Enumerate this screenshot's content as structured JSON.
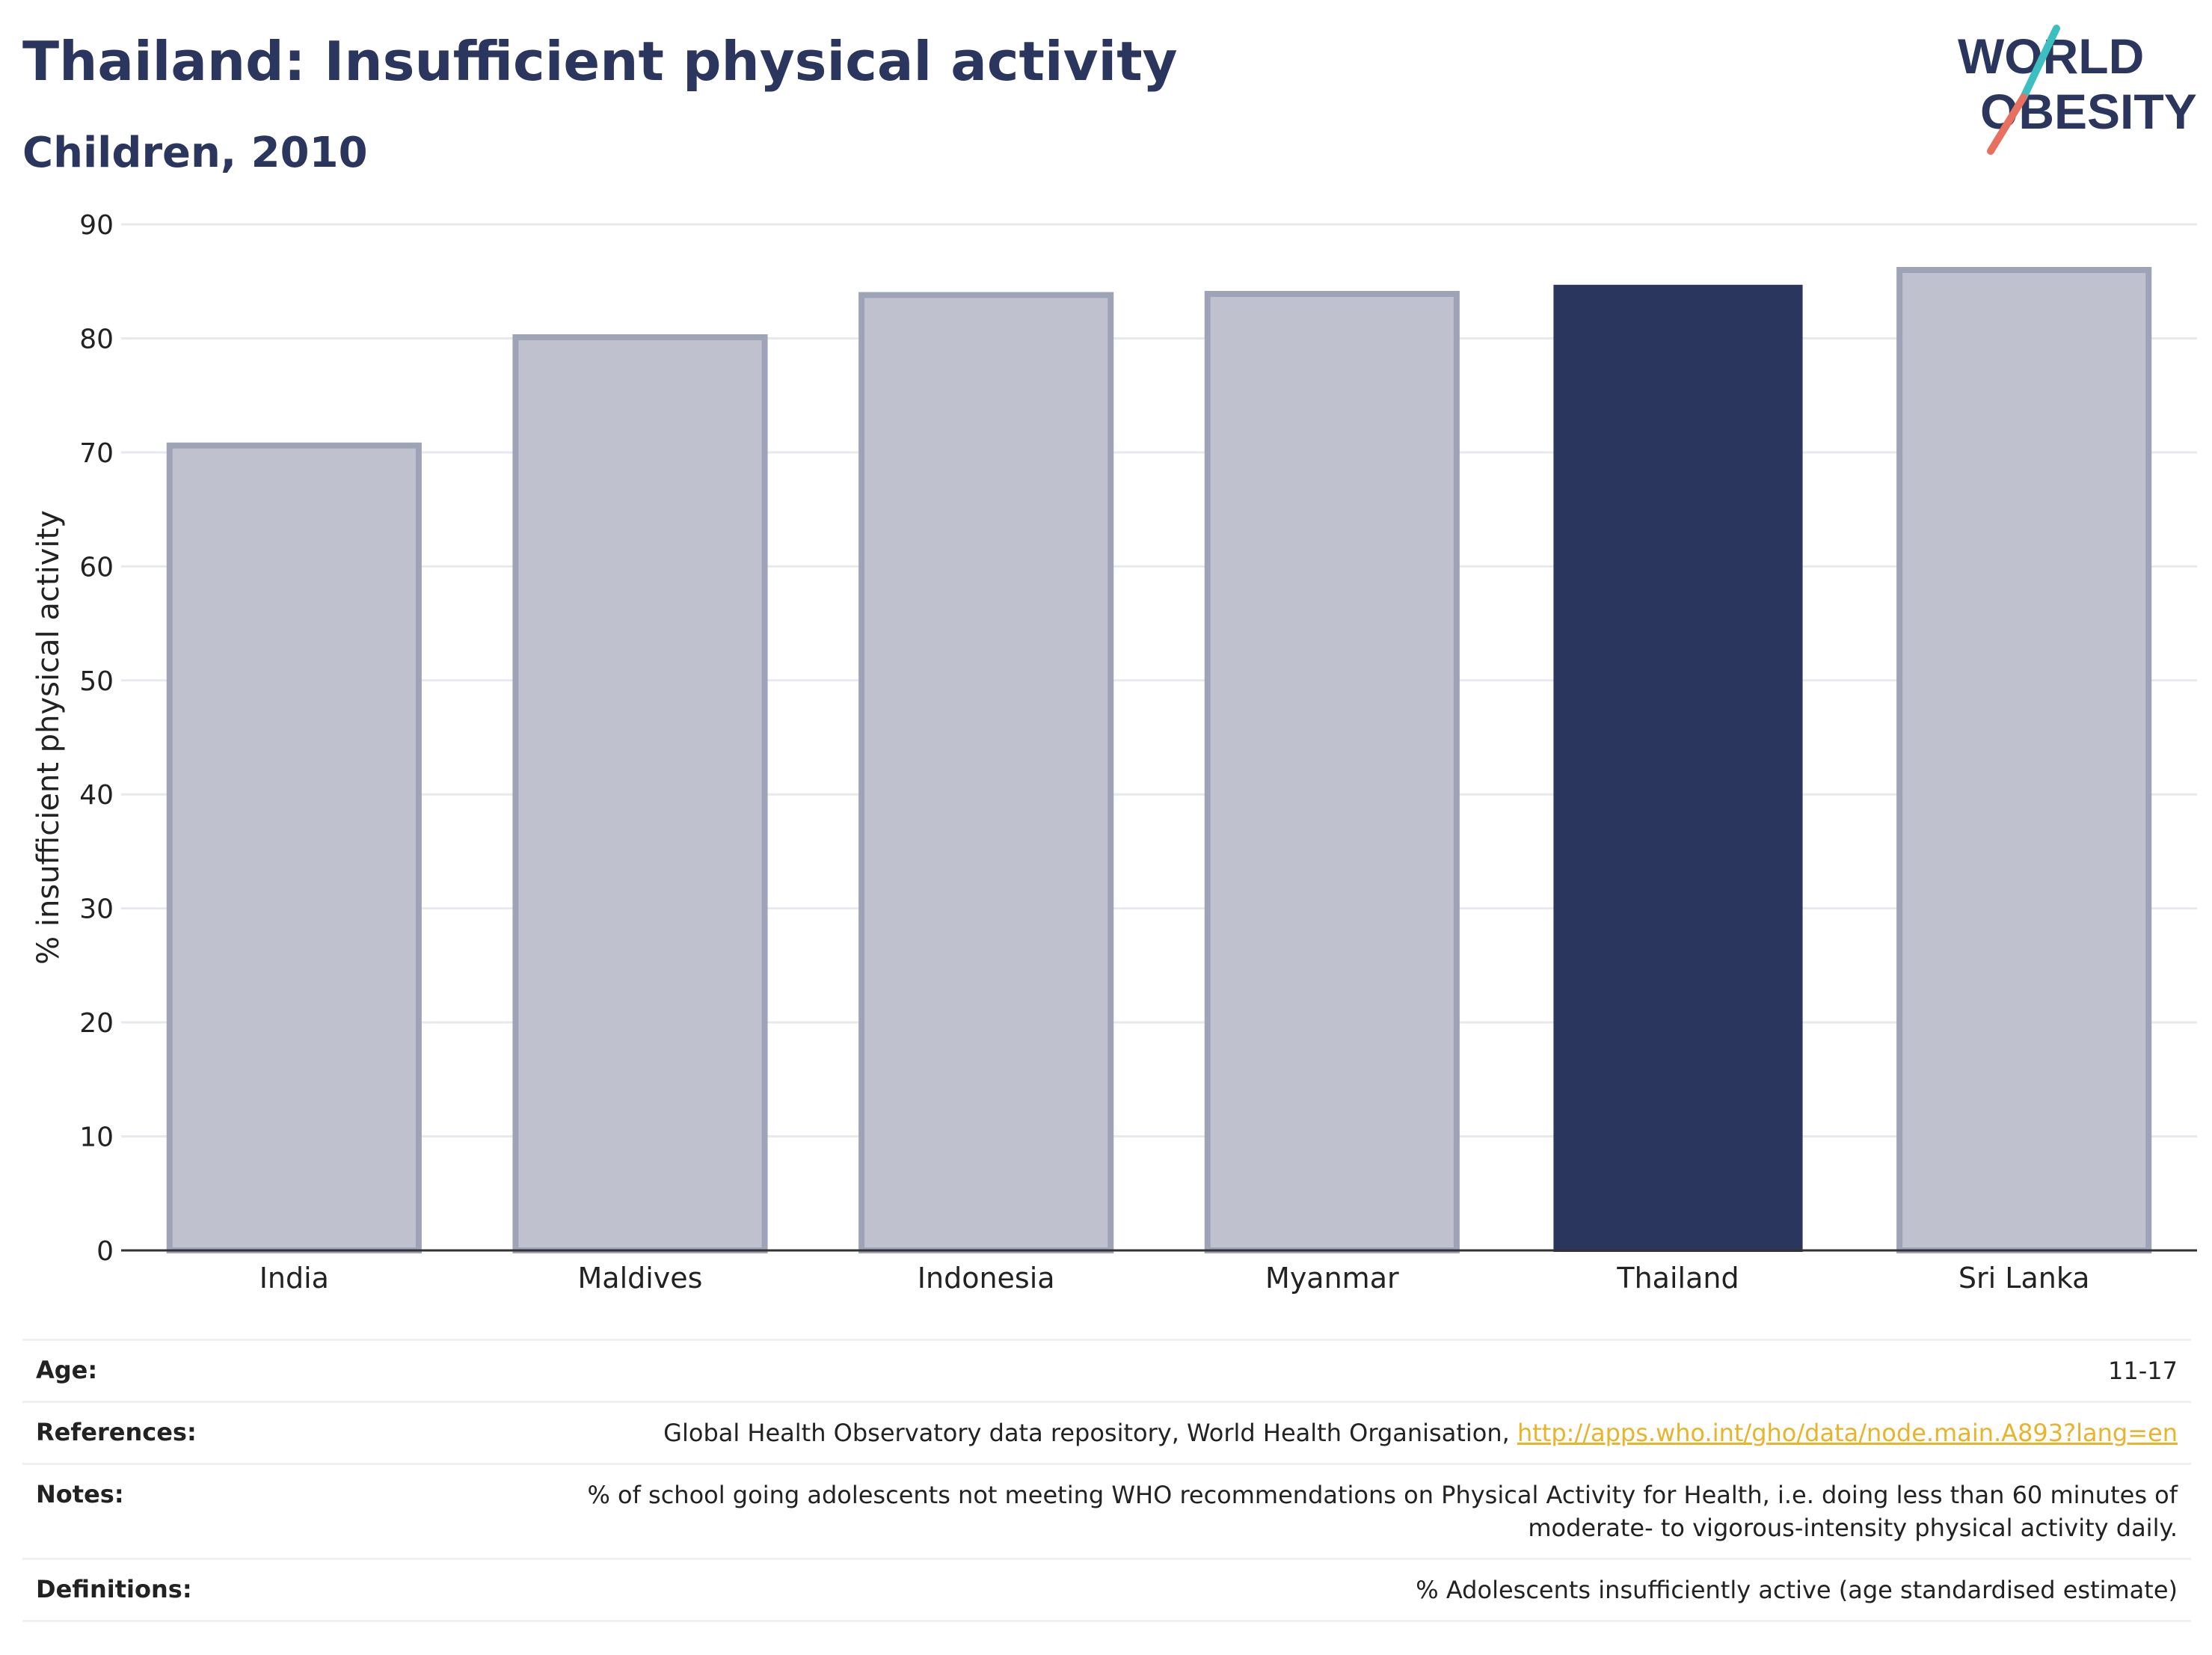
{
  "header": {
    "title": "Thailand: Insufficient physical activity",
    "subtitle": "Children, 2010"
  },
  "logo": {
    "line1": "WORLD",
    "line2": "OBESITY",
    "accent_teal": "#3dbfc1",
    "accent_coral": "#e8705f"
  },
  "chart_data": {
    "type": "bar",
    "categories": [
      "India",
      "Maldives",
      "Indonesia",
      "Myanmar",
      "Thailand",
      "Sri Lanka"
    ],
    "values": [
      70.6,
      80.1,
      83.8,
      83.9,
      84.7,
      86.0
    ],
    "highlight": "Thailand",
    "ylabel": "% insufficient physical activity",
    "ylim": [
      0,
      90
    ],
    "yticks": [
      0,
      10,
      20,
      30,
      40,
      50,
      60,
      70,
      80,
      90
    ],
    "grid": true,
    "colors": {
      "highlight": "#2b365e",
      "other_fill": "#bfc2ce",
      "other_stroke": "#9ea3b8"
    }
  },
  "footer": {
    "rows": [
      {
        "label": "Age:",
        "value": "11-17"
      },
      {
        "label": "References:",
        "value": "Global Health Observatory data repository, World Health Organisation, ",
        "link": "http://apps.who.int/gho/data/node.main.A893?lang=en"
      },
      {
        "label": "Notes:",
        "value_line1": "% of school going adolescents not meeting WHO recommendations on Physical Activity for Health, i.e. doing less than 60 minutes of",
        "value_line2": "moderate- to vigorous-intensity physical activity daily."
      },
      {
        "label": "Definitions:",
        "value": "% Adolescents insufficiently active (age standardised estimate)"
      }
    ]
  }
}
